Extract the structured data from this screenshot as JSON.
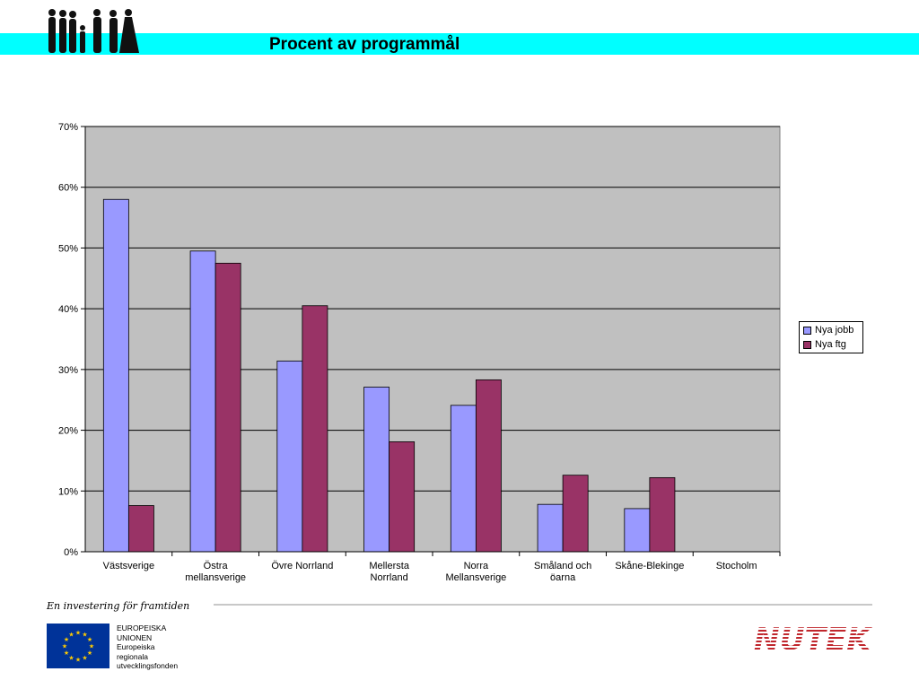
{
  "slide": {
    "title": "Procent av programmål",
    "tagline": "En investering för framtiden",
    "eu_text": [
      "EUROPEISKA",
      "UNIONEN",
      "Europeiska",
      "regionala",
      "utvecklingsfonden"
    ],
    "logo_text": "NUTEK",
    "colors": {
      "banner": "#00ffff",
      "nutek": "#c0272d",
      "eu_blue": "#003399",
      "eu_star": "#ffcc00"
    }
  },
  "chart_data": {
    "type": "bar",
    "title": "",
    "xlabel": "",
    "ylabel": "",
    "categories": [
      [
        "Västsverige"
      ],
      [
        "Östra",
        "mellansverige"
      ],
      [
        "Övre Norrland"
      ],
      [
        "Mellersta",
        "Norrland"
      ],
      [
        "Norra",
        "Mellansverige"
      ],
      [
        "Småland och",
        "öarna"
      ],
      [
        "Skåne-Blekinge"
      ],
      [
        "Stocholm"
      ]
    ],
    "series": [
      {
        "name": "Nya jobb",
        "color": "#9999ff",
        "values": [
          0.58,
          0.495,
          0.314,
          0.271,
          0.241,
          0.078,
          0.071,
          null
        ]
      },
      {
        "name": "Nya ftg",
        "color": "#993366",
        "values": [
          0.076,
          0.475,
          0.405,
          0.181,
          0.283,
          0.126,
          0.122,
          null
        ]
      }
    ],
    "ylim": [
      0,
      0.7
    ],
    "yticks": [
      "0%",
      "10%",
      "20%",
      "30%",
      "40%",
      "50%",
      "60%",
      "70%"
    ],
    "grid": true,
    "legend_position": "right",
    "plot_background": "#c0c0c0"
  }
}
